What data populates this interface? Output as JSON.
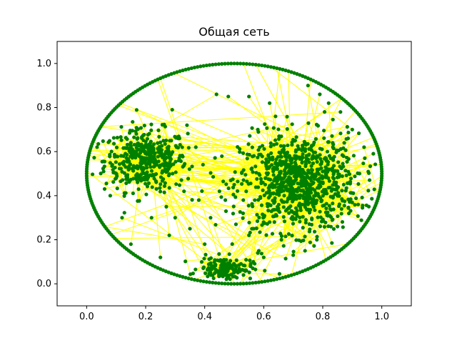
{
  "chart_data": {
    "type": "scatter",
    "title": "Общая сеть",
    "xlabel": "",
    "ylabel": "",
    "xlim": [
      -0.1,
      1.1
    ],
    "ylim": [
      -0.1,
      1.1
    ],
    "x_ticks": [
      "0.0",
      "0.2",
      "0.4",
      "0.6",
      "0.8",
      "1.0"
    ],
    "y_ticks": [
      "0.0",
      "0.2",
      "0.4",
      "0.6",
      "0.8",
      "1.0"
    ],
    "x_tick_values": [
      0.0,
      0.2,
      0.4,
      0.6,
      0.8,
      1.0
    ],
    "y_tick_values": [
      0.0,
      0.2,
      0.4,
      0.6,
      0.8,
      1.0
    ],
    "grid": false,
    "legend": "none",
    "node_color": "#008000",
    "edge_color": "#ffff00",
    "ring": {
      "center": [
        0.5,
        0.5
      ],
      "radius": 0.5,
      "nodes": 300
    },
    "clusters": [
      {
        "center": [
          0.2,
          0.56
        ],
        "spread": [
          0.07,
          0.07
        ],
        "nodes": 420
      },
      {
        "center": [
          0.72,
          0.46
        ],
        "spread": [
          0.1,
          0.11
        ],
        "nodes": 900
      },
      {
        "center": [
          0.47,
          0.07
        ],
        "spread": [
          0.045,
          0.025
        ],
        "nodes": 150
      }
    ],
    "scatter_points": [
      [
        0.55,
        0.85
      ],
      [
        0.62,
        0.82
      ],
      [
        0.58,
        0.7
      ],
      [
        0.64,
        0.76
      ],
      [
        0.35,
        0.25
      ],
      [
        0.3,
        0.3
      ],
      [
        0.28,
        0.22
      ],
      [
        0.25,
        0.12
      ],
      [
        0.42,
        0.3
      ],
      [
        0.4,
        0.18
      ],
      [
        0.55,
        0.22
      ],
      [
        0.58,
        0.14
      ],
      [
        0.6,
        0.12
      ],
      [
        0.66,
        0.2
      ],
      [
        0.7,
        0.13
      ],
      [
        0.38,
        0.38
      ],
      [
        0.33,
        0.42
      ],
      [
        0.45,
        0.42
      ],
      [
        0.5,
        0.45
      ],
      [
        0.48,
        0.85
      ],
      [
        0.44,
        0.86
      ],
      [
        0.29,
        0.79
      ],
      [
        0.34,
        0.72
      ],
      [
        0.37,
        0.62
      ],
      [
        0.47,
        0.38
      ],
      [
        0.53,
        0.32
      ],
      [
        0.56,
        0.25
      ],
      [
        0.62,
        0.28
      ],
      [
        0.15,
        0.18
      ],
      [
        0.12,
        0.3
      ],
      [
        0.08,
        0.4
      ],
      [
        0.1,
        0.48
      ],
      [
        0.27,
        0.35
      ],
      [
        0.22,
        0.3
      ],
      [
        0.31,
        0.66
      ],
      [
        0.86,
        0.78
      ],
      [
        0.9,
        0.7
      ],
      [
        0.94,
        0.62
      ],
      [
        0.92,
        0.36
      ],
      [
        0.85,
        0.26
      ],
      [
        0.78,
        0.2
      ],
      [
        0.74,
        0.15
      ],
      [
        0.82,
        0.82
      ],
      [
        0.79,
        0.86
      ],
      [
        0.75,
        0.9
      ]
    ]
  }
}
